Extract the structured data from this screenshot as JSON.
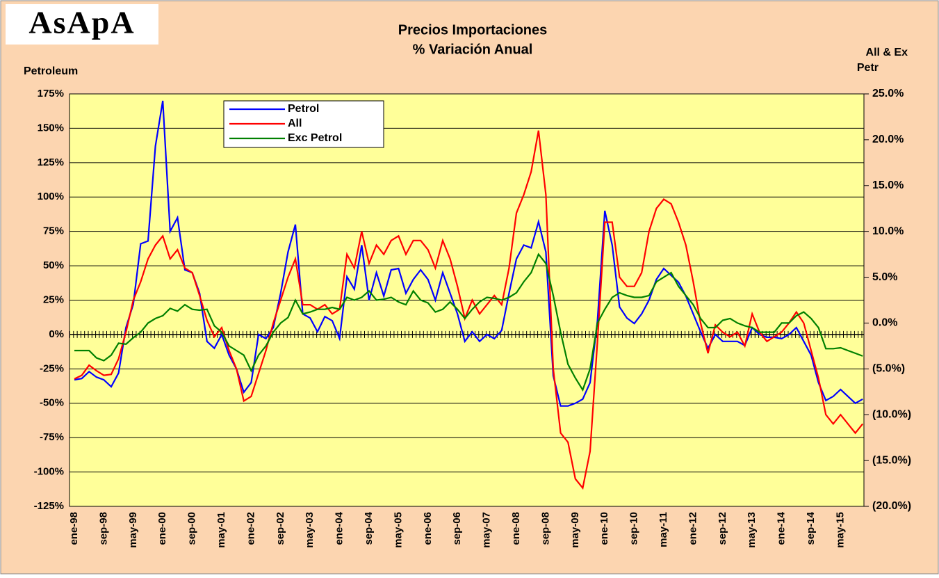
{
  "logo": "AsApA",
  "chart_data": {
    "type": "line",
    "title": "Precios Importaciones",
    "subtitle": "% Variación Anual",
    "ylabel": "Petroleum",
    "y2label_lines": [
      "All & Ex",
      "Petr"
    ],
    "categories": [
      "ene-98",
      null,
      null,
      null,
      "sep-98",
      null,
      null,
      null,
      "may-99",
      null,
      null,
      null,
      "ene-00",
      null,
      null,
      null,
      "sep-00",
      null,
      null,
      null,
      "may-01",
      null,
      null,
      null,
      "ene-02",
      null,
      null,
      null,
      "sep-02",
      null,
      null,
      null,
      "may-03",
      null,
      null,
      null,
      "ene-04",
      null,
      null,
      null,
      "sep-04",
      null,
      null,
      null,
      "may-05",
      null,
      null,
      null,
      "ene-06",
      null,
      null,
      null,
      "sep-06",
      null,
      null,
      null,
      "may-07",
      null,
      null,
      null,
      "ene-08",
      null,
      null,
      null,
      "sep-08",
      null,
      null,
      null,
      "may-09",
      null,
      null,
      null,
      "ene-10",
      null,
      null,
      null,
      "sep-10",
      null,
      null,
      null,
      "may-11",
      null,
      null,
      null,
      "ene-12",
      null,
      null,
      null,
      "sep-12",
      null,
      null,
      null,
      "may-13",
      null,
      null,
      null,
      "ene-14",
      null,
      null,
      null,
      "sep-14",
      null,
      null,
      null,
      "may-15",
      null,
      null,
      null
    ],
    "ylim": [
      -125,
      175
    ],
    "yticks": [
      {
        "value": 175,
        "label": "175%"
      },
      {
        "value": 150,
        "label": "150%"
      },
      {
        "value": 125,
        "label": "125%"
      },
      {
        "value": 100,
        "label": "100%"
      },
      {
        "value": 75,
        "label": "75%"
      },
      {
        "value": 50,
        "label": "50%"
      },
      {
        "value": 25,
        "label": "25%"
      },
      {
        "value": 0,
        "label": "0%"
      },
      {
        "value": -25,
        "label": "-25%"
      },
      {
        "value": -50,
        "label": "-50%"
      },
      {
        "value": -75,
        "label": "-75%"
      },
      {
        "value": -100,
        "label": "-100%"
      },
      {
        "value": -125,
        "label": "-125%"
      }
    ],
    "y2lim": [
      -20,
      25
    ],
    "y2ticks": [
      {
        "value": 25,
        "label": "25.0%"
      },
      {
        "value": 20,
        "label": "20.0%"
      },
      {
        "value": 15,
        "label": "15.0%"
      },
      {
        "value": 10,
        "label": "10.0%"
      },
      {
        "value": 5,
        "label": "5.0%"
      },
      {
        "value": 0,
        "label": "0.0%"
      },
      {
        "value": -5,
        "label": "(5.0%)"
      },
      {
        "value": -10,
        "label": "(10.0%)"
      },
      {
        "value": -15,
        "label": "(15.0%)"
      },
      {
        "value": -20,
        "label": "(20.0%)"
      }
    ],
    "grid": true,
    "series": [
      {
        "name": "Petrol",
        "color": "#0000ff",
        "values": [
          -33,
          -32,
          -27,
          -31,
          -33,
          -38,
          -28,
          5,
          22,
          66,
          68,
          137,
          170,
          75,
          85,
          47,
          45,
          30,
          -5,
          -10,
          0,
          -15,
          -25,
          -42,
          -35,
          0,
          -3,
          5,
          30,
          60,
          80,
          15,
          12,
          2,
          13,
          10,
          -3,
          42,
          33,
          65,
          25,
          45,
          28,
          47,
          48,
          30,
          40,
          47,
          40,
          25,
          45,
          30,
          15,
          -5,
          2,
          -5,
          0,
          -3,
          3,
          30,
          55,
          65,
          63,
          82,
          60,
          -30,
          -52,
          -52,
          -50,
          -47,
          -35,
          10,
          90,
          65,
          20,
          12,
          8,
          15,
          25,
          40,
          48,
          43,
          38,
          28,
          15,
          2,
          -10,
          0,
          -5,
          -5,
          -5,
          -8,
          5,
          0,
          -2,
          -2,
          -3,
          0,
          5,
          -5,
          -15,
          -35,
          -48,
          -45,
          -40,
          -45,
          -50,
          -47
        ]
      },
      {
        "name": "All",
        "color": "#ff0000",
        "axis": "y2",
        "values": [
          -6.1,
          -5.7,
          -4.6,
          -5.2,
          -5.7,
          -5.6,
          -3.9,
          -1,
          2.5,
          4.5,
          7,
          8.5,
          9.5,
          7,
          8,
          6,
          5.5,
          3,
          0.3,
          -1.5,
          -0.5,
          -3,
          -5,
          -8.5,
          -8,
          -5.5,
          -3,
          0,
          2.5,
          5,
          7,
          2,
          2,
          1.5,
          2,
          1,
          1.5,
          7.5,
          6,
          10,
          6.5,
          8.5,
          7.5,
          9,
          9.5,
          7.5,
          9,
          9,
          8,
          6,
          9,
          7,
          4,
          0.5,
          2.5,
          1,
          2,
          3,
          2,
          6,
          12,
          14,
          16.5,
          21,
          14,
          -5,
          -12,
          -13,
          -17,
          -18,
          -14,
          -2,
          11,
          11,
          5,
          4,
          4,
          5.5,
          10,
          12.5,
          13.5,
          13,
          11,
          8.5,
          4.5,
          0,
          -3.3,
          -0.2,
          -1,
          -1.5,
          -1,
          -2.5,
          1,
          -1,
          -2,
          -1.5,
          -1,
          0,
          1.2,
          0,
          -3,
          -6,
          -10,
          -11,
          -10,
          -11,
          -12,
          -11
        ]
      },
      {
        "name": "Exc Petrol",
        "color": "#008000",
        "axis": "y2",
        "values": [
          -3,
          -3,
          -3,
          -3.8,
          -4.1,
          -3.5,
          -2.2,
          -2.3,
          -1.6,
          -1,
          0,
          0.5,
          0.8,
          1.6,
          1.3,
          2,
          1.5,
          1.4,
          1.5,
          -0.3,
          -1,
          -2.5,
          -3,
          -3.5,
          -5.2,
          -3.5,
          -2.5,
          -1,
          0,
          0.6,
          2.5,
          1,
          1.2,
          1.5,
          1.5,
          1.7,
          1.5,
          2.8,
          2.5,
          2.8,
          3.5,
          2.5,
          2.6,
          2.8,
          2.3,
          2,
          3.5,
          2.5,
          2.2,
          1.2,
          1.5,
          2.3,
          1.5,
          0.5,
          1.5,
          2.3,
          2.8,
          2.7,
          2.5,
          2.8,
          3.3,
          4.5,
          5.5,
          7.5,
          6.5,
          3,
          -1,
          -4.5,
          -6,
          -7.3,
          -5,
          0,
          1.5,
          2.8,
          3.3,
          3,
          2.8,
          2.8,
          3,
          4.5,
          5,
          5.5,
          4,
          3,
          2,
          0.5,
          -0.5,
          -0.5,
          0.3,
          0.5,
          0,
          -0.3,
          -0.5,
          -1,
          -1,
          -1,
          0,
          0,
          0.8,
          1.2,
          0.5,
          -0.5,
          -2.8,
          -2.8,
          -2.7,
          -3,
          -3.3,
          -3.6
        ]
      }
    ]
  }
}
